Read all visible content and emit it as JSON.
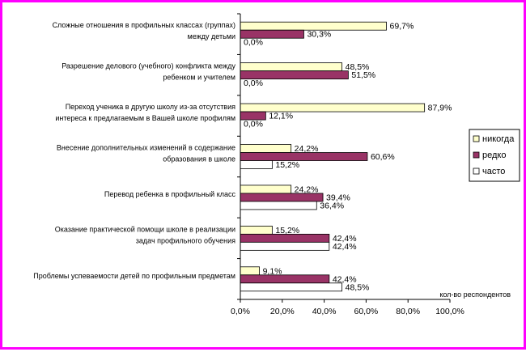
{
  "chart_data": {
    "type": "bar",
    "orientation": "horizontal",
    "categories": [
      [
        "Сложные отношения в профильных классах (группах)",
        "между детьми"
      ],
      [
        "Разрешение делового (учебного) конфликта между",
        "ребенком и учителем"
      ],
      [
        "Переход ученика в другую школу из-за отсутствия",
        "интереса к предлагаемым в Вашей школе профилям"
      ],
      [
        "Внесение дополнительных изменений в содержание",
        "образования в школе"
      ],
      [
        "Перевод ребенка в профильный класс"
      ],
      [
        "Оказание практической помощи школе в реализации",
        "задач профильного обучения"
      ],
      [
        "Проблемы успеваемости детей по профильным предметам"
      ]
    ],
    "series": [
      {
        "name": "никогда",
        "color": "#ffffcc",
        "values": [
          69.7,
          48.5,
          87.9,
          24.2,
          24.2,
          15.2,
          9.1
        ],
        "labels": [
          "69,7%",
          "48,5%",
          "87,9%",
          "24,2%",
          "24,2%",
          "15,2%",
          "9,1%"
        ]
      },
      {
        "name": "редко",
        "color": "#993366",
        "values": [
          30.3,
          51.5,
          12.1,
          60.6,
          39.4,
          42.4,
          42.4
        ],
        "labels": [
          "30,3%",
          "51,5%",
          "12,1%",
          "60,6%",
          "39,4%",
          "42,4%",
          "42,4%"
        ]
      },
      {
        "name": "часто",
        "color": "#ffffff",
        "values": [
          0.0,
          0.0,
          0.0,
          15.2,
          36.4,
          42.4,
          48.5
        ],
        "labels": [
          "0,0%",
          "0,0%",
          "0,0%",
          "15,2%",
          "36,4%",
          "42,4%",
          "48,5%"
        ]
      }
    ],
    "xlim": [
      0,
      100
    ],
    "xticks": [
      0,
      20,
      40,
      60,
      80,
      100
    ],
    "xtick_labels": [
      "0,0%",
      "20,0%",
      "40,0%",
      "60,0%",
      "80,0%",
      "100,0%"
    ],
    "xlabel": "кол-во респондентов",
    "legend_position": "right",
    "grid": false,
    "frame_color": "#ff00ff"
  }
}
